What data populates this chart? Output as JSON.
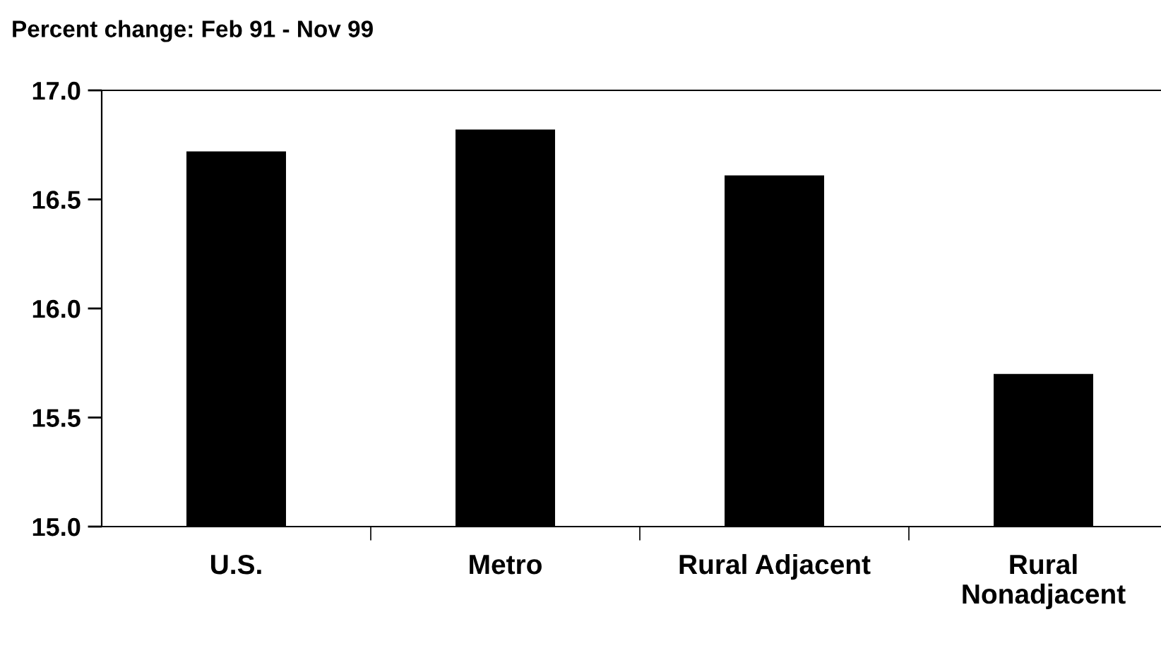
{
  "chart_data": {
    "type": "bar",
    "title": "Percent change: Feb 91 - Nov 99",
    "categories": [
      "U.S.",
      "Metro",
      "Rural Adjacent",
      "Rural\nNonadjacent"
    ],
    "values": [
      16.72,
      16.82,
      16.61,
      15.7
    ],
    "color": "#000000",
    "ylim": [
      15.0,
      17.0
    ],
    "yticks": [
      {
        "value": 15.0,
        "label": "15.0"
      },
      {
        "value": 15.5,
        "label": "15.5"
      },
      {
        "value": 16.0,
        "label": "16.0"
      },
      {
        "value": 16.5,
        "label": "16.5"
      },
      {
        "value": 17.0,
        "label": "17.0"
      }
    ],
    "grid": false,
    "legend": false
  }
}
